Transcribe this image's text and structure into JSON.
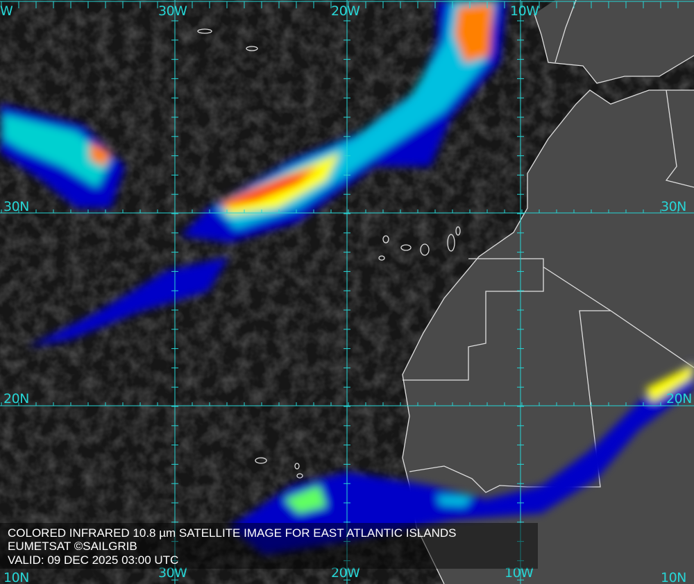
{
  "caption": {
    "line1": "COLORED INFRARED 10.8 µm SATELLITE IMAGE FOR EAST ATLANTIC ISLANDS",
    "line2": "EUMETSAT ©SAILGRIB",
    "line3": "VALID:  09 DEC 2025 03:00 UTC"
  },
  "grid": {
    "color": "#27d6d6",
    "top_labels": [
      "W",
      "30W",
      "20W",
      "10W"
    ],
    "bottom_labels": [
      "10N",
      "30W",
      "20W",
      "10W",
      "10N"
    ],
    "left_labels": [
      "30N",
      "20N"
    ],
    "right_labels": [
      "30N",
      "20N"
    ]
  },
  "colors": {
    "ocean": "#161616",
    "land": "#4a4a4a",
    "coastline": "#e0e0e0",
    "cloud_scale": [
      "#0000c8",
      "#0080ff",
      "#00e0e0",
      "#60ff60",
      "#ffff00",
      "#ff8000",
      "#ff0000"
    ]
  }
}
